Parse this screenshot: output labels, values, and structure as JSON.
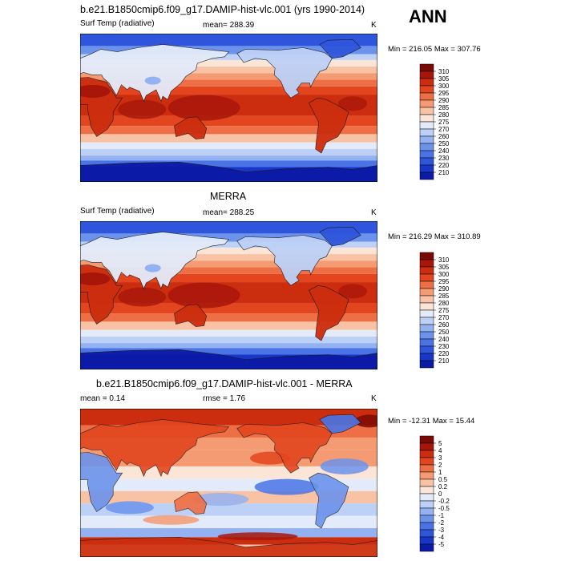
{
  "season": "ANN",
  "colors": {
    "abs_scale": [
      "#0b1aa6",
      "#1836c7",
      "#2f55dc",
      "#4a74e6",
      "#6c93ec",
      "#94b2f2",
      "#bdd0f6",
      "#e3ebfa",
      "#fbe5d6",
      "#f8c2a4",
      "#f49b73",
      "#ee6f45",
      "#e3461f",
      "#cc2d0e",
      "#a8160a",
      "#7a0a05"
    ],
    "diff_scale": [
      "#0b1aa6",
      "#1836c7",
      "#2f55dc",
      "#4a74e6",
      "#6c93ec",
      "#94b2f2",
      "#bdd0f6",
      "#e3ebfa",
      "#fbe5d6",
      "#f8c2a4",
      "#f49b73",
      "#ee6f45",
      "#e3461f",
      "#cc2d0e",
      "#a8160a",
      "#7a0a05"
    ]
  },
  "chart_data": [
    {
      "type": "heatmap",
      "title": "b.e21.B1850cmip6.f09_g17.DAMIP-hist-vlc.001 (yrs 1990-2014)",
      "left_label": "Surf Temp (radiative)",
      "center_label": "mean= 288.39",
      "units": "K",
      "range_text": "Min = 216.05 Max = 307.76",
      "min": 216.05,
      "max": 307.76,
      "colorbar_levels": [
        "210",
        "220",
        "230",
        "240",
        "250",
        "260",
        "270",
        "275",
        "280",
        "285",
        "290",
        "295",
        "300",
        "305",
        "310"
      ]
    },
    {
      "type": "heatmap",
      "title": "MERRA",
      "left_label": "Surf Temp (radiative)",
      "center_label": "mean= 288.25",
      "units": "K",
      "range_text": "Min = 216.29 Max = 310.89",
      "min": 216.29,
      "max": 310.89,
      "colorbar_levels": [
        "210",
        "220",
        "230",
        "240",
        "250",
        "260",
        "270",
        "275",
        "280",
        "285",
        "290",
        "295",
        "300",
        "305",
        "310"
      ]
    },
    {
      "type": "heatmap",
      "title": "b.e21.B1850cmip6.f09_g17.DAMIP-hist-vlc.001 - MERRA",
      "left_label": "mean =   0.14",
      "center_label": "rmse =   1.76",
      "units": "K",
      "range_text": "Min = -12.31 Max =  15.44",
      "min": -12.31,
      "max": 15.44,
      "colorbar_levels": [
        "-5",
        "-4",
        "-3",
        "-2",
        "-1",
        "-0.5",
        "-0.2",
        "0",
        "0.2",
        "0.5",
        "1",
        "2",
        "3",
        "4",
        "5"
      ]
    }
  ]
}
